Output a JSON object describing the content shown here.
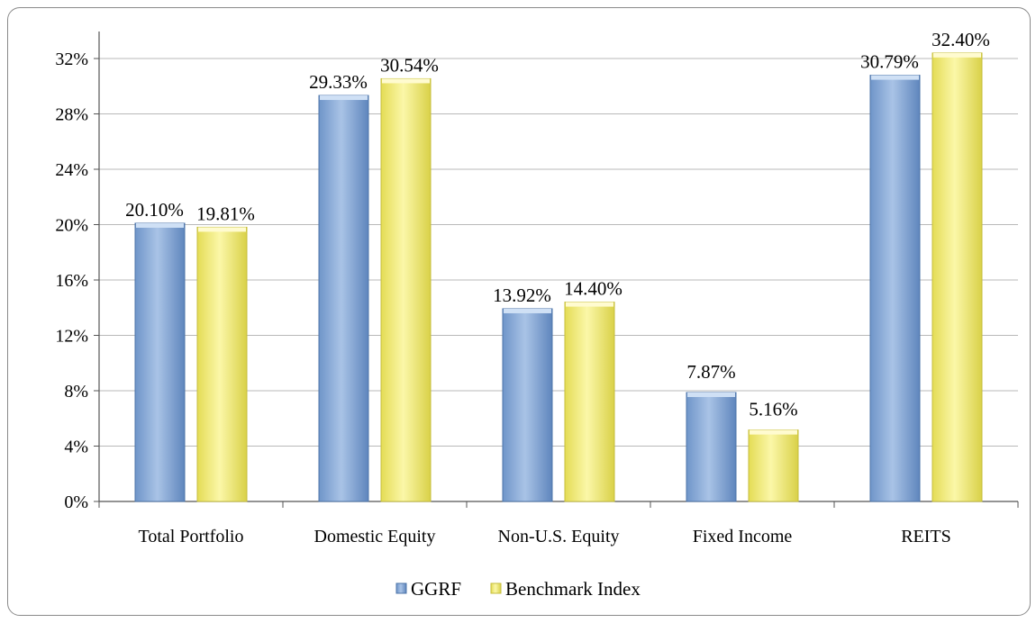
{
  "chart_data": {
    "type": "bar",
    "categories": [
      "Total Portfolio",
      "Domestic Equity",
      "Non-U.S. Equity",
      "Fixed Income",
      "REITS"
    ],
    "series": [
      {
        "name": "GGRF",
        "values": [
          20.1,
          29.33,
          13.92,
          7.87,
          30.79
        ],
        "labels": [
          "20.10%",
          "29.33%",
          "13.92%",
          "7.87%",
          "30.79%"
        ],
        "color": "#8fb0d9"
      },
      {
        "name": "Benchmark Index",
        "values": [
          19.81,
          30.54,
          14.4,
          5.16,
          32.4
        ],
        "labels": [
          "19.81%",
          "30.54%",
          "14.40%",
          "5.16%",
          "32.40%"
        ],
        "color": "#f4ef86"
      }
    ],
    "ylim": [
      0,
      32
    ],
    "yticks": [
      0,
      4,
      8,
      12,
      16,
      20,
      24,
      28,
      32
    ],
    "ytick_labels": [
      "0%",
      "4%",
      "8%",
      "12%",
      "16%",
      "20%",
      "24%",
      "28%",
      "32%"
    ],
    "grid": true,
    "legend_position": "bottom"
  }
}
